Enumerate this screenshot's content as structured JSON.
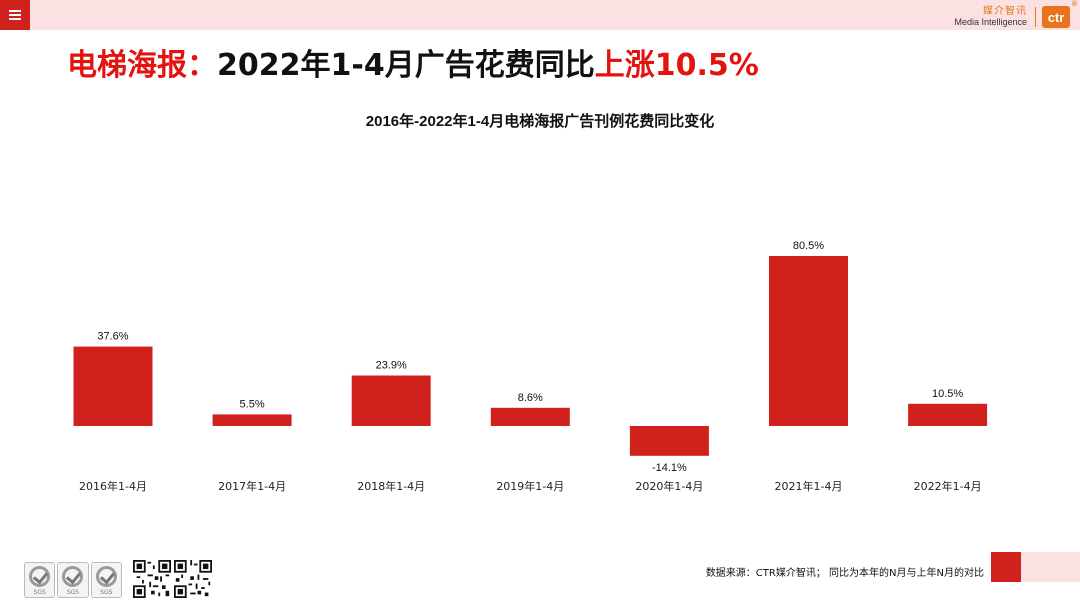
{
  "header": {
    "menu_icon": "hamburger-menu-icon",
    "brand_cn": "媒介智讯",
    "brand_en": "Media Intelligence",
    "brand_logo": "ctr",
    "brand_reg": "®"
  },
  "headline": {
    "part1": "电梯海报：",
    "part2": "2022年1-4月广告花费同比",
    "part3": "上涨10.5%"
  },
  "chart_data": {
    "type": "bar",
    "title": "2016年-2022年1-4月电梯海报广告刊例花费同比变化",
    "categories": [
      "2016年1-4月",
      "2017年1-4月",
      "2018年1-4月",
      "2019年1-4月",
      "2020年1-4月",
      "2021年1-4月",
      "2022年1-4月"
    ],
    "values": [
      37.6,
      5.5,
      23.9,
      8.6,
      -14.1,
      80.5,
      10.5
    ],
    "value_labels": [
      "37.6%",
      "5.5%",
      "23.9%",
      "8.6%",
      "-14.1%",
      "80.5%",
      "10.5%"
    ],
    "unit": "%",
    "grid": false,
    "legend": "none",
    "color": "#d0211c"
  },
  "footer": {
    "note": "数据来源：CTR媒介智讯；  同比为本年的N月与上年N月的对比",
    "badge_label": "SGS"
  },
  "colors": {
    "accent": "#d0211c",
    "headline_red": "#e3140f",
    "topbar": "#fbe1e1",
    "brand_orange": "#e8731c"
  }
}
